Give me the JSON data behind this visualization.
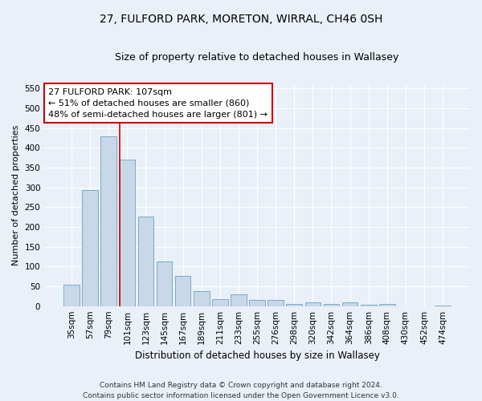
{
  "title1": "27, FULFORD PARK, MORETON, WIRRAL, CH46 0SH",
  "title2": "Size of property relative to detached houses in Wallasey",
  "xlabel": "Distribution of detached houses by size in Wallasey",
  "ylabel": "Number of detached properties",
  "categories": [
    "35sqm",
    "57sqm",
    "79sqm",
    "101sqm",
    "123sqm",
    "145sqm",
    "167sqm",
    "189sqm",
    "211sqm",
    "233sqm",
    "255sqm",
    "276sqm",
    "298sqm",
    "320sqm",
    "342sqm",
    "364sqm",
    "386sqm",
    "408sqm",
    "430sqm",
    "452sqm",
    "474sqm"
  ],
  "values": [
    55,
    293,
    430,
    370,
    226,
    113,
    76,
    38,
    17,
    30,
    16,
    15,
    5,
    9,
    6,
    9,
    4,
    5,
    0,
    0,
    2
  ],
  "bar_color": "#c8d8e8",
  "bar_edge_color": "#7aaac8",
  "annotation_text": "27 FULFORD PARK: 107sqm\n← 51% of detached houses are smaller (860)\n48% of semi-detached houses are larger (801) →",
  "annotation_box_color": "#ffffff",
  "annotation_box_edge_color": "#cc0000",
  "vline_color": "#cc0000",
  "vline_x_index": 3,
  "ylim": [
    0,
    560
  ],
  "yticks": [
    0,
    50,
    100,
    150,
    200,
    250,
    300,
    350,
    400,
    450,
    500,
    550
  ],
  "footer1": "Contains HM Land Registry data © Crown copyright and database right 2024.",
  "footer2": "Contains public sector information licensed under the Open Government Licence v3.0.",
  "background_color": "#eaf0f8",
  "plot_bg_color": "#eaf0f8",
  "title1_fontsize": 10,
  "title2_fontsize": 9,
  "xlabel_fontsize": 8.5,
  "ylabel_fontsize": 8,
  "tick_fontsize": 7.5,
  "footer_fontsize": 6.5,
  "annotation_fontsize": 8
}
